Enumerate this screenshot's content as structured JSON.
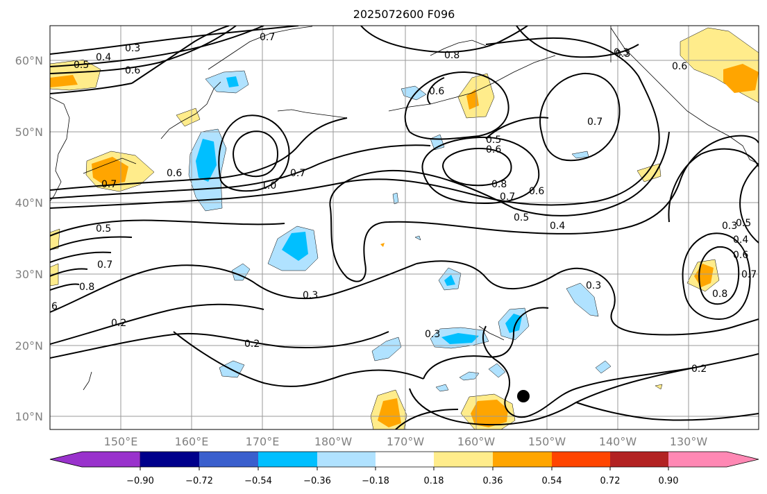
{
  "title": "2025072600 F096",
  "lat_labels": [
    "10°N",
    "20°N",
    "30°N",
    "40°N",
    "50°N",
    "60°N"
  ],
  "lon_labels": [
    "150°E",
    "160°E",
    "170°E",
    "180°W",
    "170°W",
    "160°W",
    "150°W",
    "140°W",
    "130°W"
  ],
  "colorbar": {
    "colors": [
      "#9932cc",
      "#00008b",
      "#3a5fcd",
      "#00bfff",
      "#b0e2ff",
      "#ffffff",
      "#ffec8b",
      "#ffa500",
      "#ff4500",
      "#b22222",
      "#ff88b4"
    ],
    "tick_labels": [
      "−0.90",
      "−0.72",
      "−0.54",
      "−0.36",
      "−0.18",
      "0.18",
      "0.36",
      "0.54",
      "0.72",
      "0.90"
    ]
  },
  "contour_labels": [
    "0.3",
    "0.4",
    "0.5",
    "0.6",
    "0.7",
    "0.8",
    "0.3",
    "0.6",
    "0.5",
    "0.6",
    "0.8",
    "0.7",
    "0.6",
    "0.5",
    "0.4",
    "0.7",
    "0.7",
    "0.6",
    "1.0",
    "0.7",
    "0.6",
    "0.3",
    "0.2",
    "0.5",
    "0.7",
    "0.8",
    "6",
    "0.2",
    "0.3",
    "0.2",
    "0.3",
    "0.3",
    "0.4",
    "0.5",
    "0.6",
    "0.7",
    "0.8",
    "0.3"
  ]
}
